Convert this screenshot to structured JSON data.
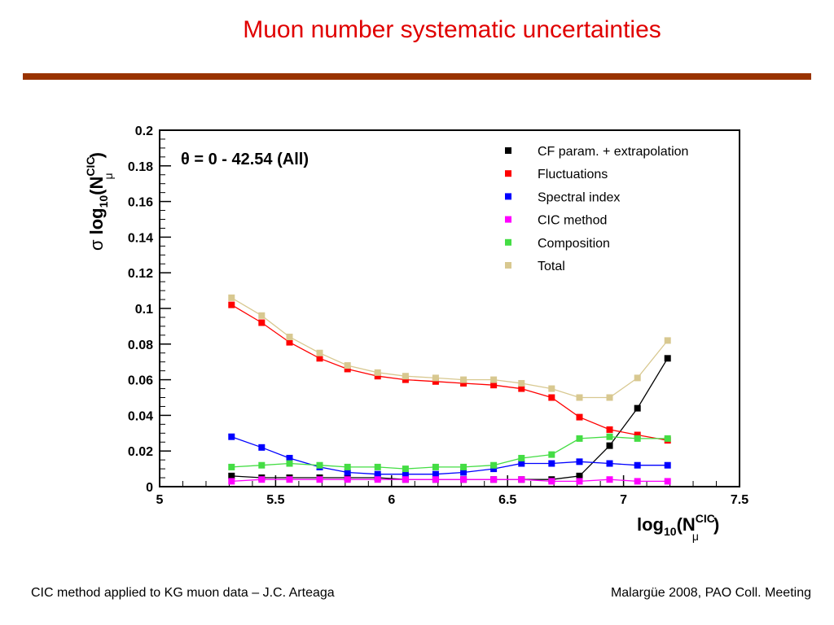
{
  "slide": {
    "title": "Muon number systematic uncertainties",
    "footer_left": "CIC method applied to KG muon data – J.C. Arteaga",
    "footer_right": "Malargüe 2008, PAO Coll. Meeting"
  },
  "chart_data": {
    "type": "line",
    "annotation": "θ = 0 - 42.54 (All)",
    "xlabel": {
      "main": "log",
      "sub": "10",
      "open": "(N",
      "sup": "CIC",
      "muon_sub": "μ",
      "close": ")"
    },
    "ylabel": {
      "sigma": "σ",
      "main": "log",
      "sub": "10",
      "open": "(N",
      "sup": "CIC",
      "muon_sub": "μ",
      "close": ")"
    },
    "xlim": [
      5,
      7.5
    ],
    "ylim": [
      0,
      0.2
    ],
    "x_ticks": [
      "5",
      "5.5",
      "6",
      "6.5",
      "7",
      "7.5"
    ],
    "y_ticks": [
      "0",
      "0.02",
      "0.04",
      "0.06",
      "0.08",
      "0.1",
      "0.12",
      "0.14",
      "0.16",
      "0.18",
      "0.2"
    ],
    "legend_position": "top-right",
    "x": [
      5.31,
      5.44,
      5.56,
      5.69,
      5.81,
      5.94,
      6.06,
      6.19,
      6.31,
      6.44,
      6.56,
      6.69,
      6.81,
      6.94,
      7.06,
      7.19
    ],
    "series": [
      {
        "name": "CF param. + extrapolation",
        "color": "#000000",
        "values": [
          0.006,
          0.005,
          0.005,
          0.005,
          0.005,
          0.005,
          0.004,
          0.004,
          0.004,
          0.004,
          0.004,
          0.004,
          0.006,
          0.023,
          0.044,
          0.072
        ]
      },
      {
        "name": "Fluctuations",
        "color": "#ff0000",
        "values": [
          0.102,
          0.092,
          0.081,
          0.072,
          0.066,
          0.062,
          0.06,
          0.059,
          0.058,
          0.057,
          0.055,
          0.05,
          0.039,
          0.032,
          0.029,
          0.026
        ]
      },
      {
        "name": "Spectral index",
        "color": "#0000ff",
        "values": [
          0.028,
          0.022,
          0.016,
          0.011,
          0.008,
          0.007,
          0.007,
          0.007,
          0.008,
          0.01,
          0.013,
          0.013,
          0.014,
          0.013,
          0.012,
          0.012
        ]
      },
      {
        "name": "CIC method",
        "color": "#ff00ff",
        "values": [
          0.003,
          0.004,
          0.004,
          0.004,
          0.004,
          0.004,
          0.004,
          0.004,
          0.004,
          0.004,
          0.004,
          0.003,
          0.003,
          0.004,
          0.003,
          0.003
        ]
      },
      {
        "name": "Composition",
        "color": "#44dd44",
        "values": [
          0.011,
          0.012,
          0.013,
          0.012,
          0.011,
          0.011,
          0.01,
          0.011,
          0.011,
          0.012,
          0.016,
          0.018,
          0.027,
          0.028,
          0.027,
          0.027
        ]
      },
      {
        "name": "Total",
        "color": "#d8c890",
        "values": [
          0.106,
          0.096,
          0.084,
          0.075,
          0.068,
          0.064,
          0.062,
          0.061,
          0.06,
          0.06,
          0.058,
          0.055,
          0.05,
          0.05,
          0.061,
          0.082
        ]
      }
    ]
  }
}
